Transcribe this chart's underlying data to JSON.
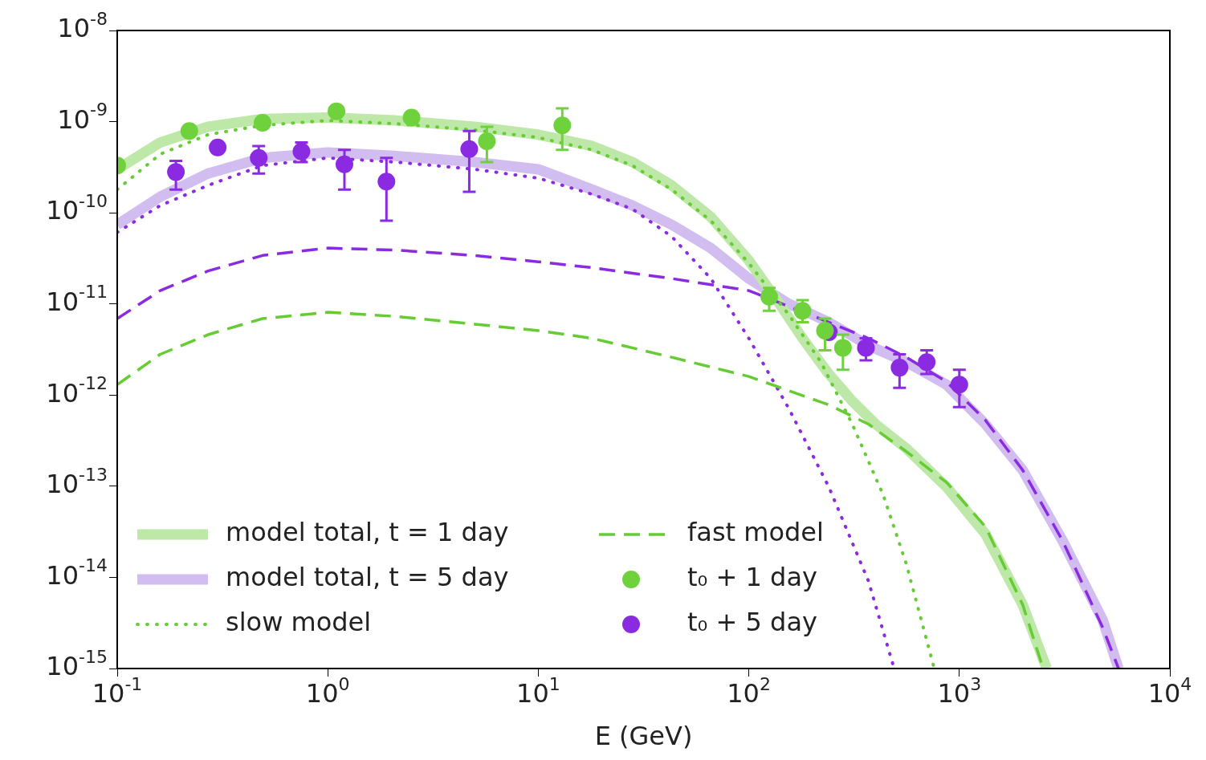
{
  "chart_data": {
    "type": "line",
    "xlabel": "E (GeV)",
    "log": "xy",
    "grid": false,
    "legend": "bottom left",
    "xlim": [
      0.1,
      10000
    ],
    "ylim": [
      1e-15,
      1e-08
    ],
    "xticks": [
      {
        "value": 0.1,
        "label": "10$^{-1}$"
      },
      {
        "value": 1,
        "label": "10$^{0}$"
      },
      {
        "value": 10,
        "label": "10$^{1}$"
      },
      {
        "value": 100,
        "label": "10$^{2}$"
      },
      {
        "value": 1000,
        "label": "10$^{3}$"
      },
      {
        "value": 10000,
        "label": "10$^{4}$"
      }
    ],
    "yticks": [
      {
        "value": 1e-15,
        "label": "10$^{-15}$"
      },
      {
        "value": 1e-14,
        "label": "10$^{-14}$"
      },
      {
        "value": 1e-13,
        "label": "10$^{-13}$"
      },
      {
        "value": 1e-12,
        "label": "10$^{-12}$"
      },
      {
        "value": 1e-11,
        "label": "10$^{-11}$"
      },
      {
        "value": 1e-10,
        "label": "10$^{-10}$"
      },
      {
        "value": 1e-09,
        "label": "10$^{-9}$"
      },
      {
        "value": 1e-08,
        "label": "10$^{-8}$"
      }
    ],
    "series": [
      {
        "name": "model total, t = 1 day",
        "type": "line",
        "line_style": "solid",
        "color": "#bde8a8",
        "x": [
          0.1,
          0.16,
          0.27,
          0.49,
          1,
          2.1,
          5.0,
          10,
          18,
          28,
          43,
          66,
          100,
          140,
          180,
          240,
          310,
          400,
          560,
          870,
          1330,
          2000,
          2600
        ],
        "values": [
          3e-10,
          5.9e-10,
          8.8e-10,
          1.07e-09,
          1.11e-09,
          1.03e-09,
          8.8e-10,
          7.2e-10,
          5.4e-10,
          3.6e-10,
          2e-10,
          9e-11,
          3e-11,
          1e-11,
          4.2e-12,
          1.7e-12,
          8.6e-13,
          4.8e-13,
          2.6e-13,
          9.8e-14,
          3e-14,
          5e-15,
          1e-15
        ]
      },
      {
        "name": "model total, t = 5 day",
        "type": "line",
        "line_style": "solid",
        "color": "#d2bdf0",
        "x": [
          0.1,
          0.16,
          0.27,
          0.49,
          1,
          2.1,
          5.0,
          10,
          18,
          28,
          43,
          66,
          100,
          155,
          240,
          370,
          560,
          870,
          1330,
          2000,
          3100,
          4800,
          5700
        ],
        "values": [
          7.4e-11,
          1.5e-10,
          2.7e-10,
          4e-10,
          4.6e-10,
          4.2e-10,
          3.6e-10,
          3e-10,
          1.8e-10,
          1.2e-10,
          7.4e-11,
          4.1e-11,
          1.9e-11,
          1e-11,
          6.3e-12,
          3.5e-12,
          2.3e-12,
          1.3e-12,
          4.8e-13,
          1.5e-13,
          2.5e-14,
          3.4e-15,
          1e-15
        ]
      },
      {
        "name": "slow model",
        "type": "line",
        "line_style": "dotted",
        "color": "#66cc33",
        "x": [
          0.1,
          0.16,
          0.27,
          0.49,
          1,
          2.1,
          5.0,
          10,
          18,
          28,
          43,
          66,
          100,
          155,
          220,
          310,
          435,
          560,
          760
        ],
        "values": [
          1.8e-10,
          4.4e-10,
          7.2e-10,
          9.1e-10,
          1.03e-09,
          9.5e-10,
          8.1e-10,
          6.7e-10,
          4.9e-10,
          3.3e-10,
          1.8e-10,
          8.2e-11,
          2.8e-11,
          7.6e-12,
          2.3e-12,
          4.8e-13,
          8e-14,
          1.4e-14,
          1e-15
        ]
      },
      {
        "name": "fast model",
        "type": "line",
        "line_style": "dashed",
        "color": "#66cc33",
        "x": [
          0.1,
          0.16,
          0.27,
          0.49,
          1,
          2.1,
          5.0,
          10,
          18,
          43,
          100,
          240,
          370,
          560,
          870,
          1330,
          2000,
          2500
        ],
        "values": [
          1.3e-12,
          2.8e-12,
          4.6e-12,
          6.9e-12,
          8.1e-12,
          7.3e-12,
          6e-12,
          5.1e-12,
          4.2e-12,
          2.6e-12,
          1.6e-12,
          7.8e-13,
          4.8e-13,
          2.4e-13,
          1.1e-13,
          3.6e-14,
          5e-15,
          1e-15
        ]
      },
      {
        "name": "t₀ + 1 day",
        "type": "scatter",
        "marker": "circle",
        "color": "#6fd23c",
        "x": [
          0.1,
          0.22,
          0.49,
          1.1,
          2.5,
          5.7,
          13,
          125,
          180,
          230,
          280
        ],
        "values": [
          3.3e-10,
          7.9e-10,
          9.7e-10,
          1.3e-09,
          1.11e-09,
          6.1e-10,
          9.1e-10,
          1.2e-11,
          8.4e-12,
          5.1e-12,
          3.3e-12
        ],
        "errors": [
          null,
          null,
          null,
          null,
          null,
          [
            3.6e-10,
            8.8e-10
          ],
          [
            4.9e-10,
            1.4e-09
          ],
          [
            8.4e-12,
            1.5e-11
          ],
          [
            6.3e-12,
            1.1e-11
          ],
          [
            3.1e-12,
            6.9e-12
          ],
          [
            1.9e-12,
            4.6e-12
          ]
        ]
      },
      {
        "name": "t₀ + 5 day",
        "type": "scatter",
        "marker": "circle",
        "color": "#8a2be2",
        "x": [
          0.19,
          0.3,
          0.47,
          0.75,
          1.2,
          1.9,
          4.7,
          240,
          360,
          520,
          700,
          1000
        ],
        "values": [
          2.8e-10,
          5.2e-10,
          4e-10,
          4.7e-10,
          3.4e-10,
          2.2e-10,
          5e-10,
          4.9e-12,
          3.3e-12,
          2e-12,
          2.3e-12,
          1.3e-12
        ],
        "errors": [
          [
            1.8e-10,
            3.7e-10
          ],
          null,
          [
            2.7e-10,
            5.4e-10
          ],
          [
            3.6e-10,
            5.9e-10
          ],
          [
            1.8e-10,
            4.9e-10
          ],
          [
            8.2e-11,
            4e-10
          ],
          [
            1.7e-10,
            7.9e-10
          ],
          null,
          [
            2.4e-12,
            4.2e-12
          ],
          [
            1.2e-12,
            2.8e-12
          ],
          [
            1.7e-12,
            3.1e-12
          ],
          [
            7.4e-13,
            1.9e-12
          ]
        ]
      },
      {
        "type": "line",
        "line_style": "dotted",
        "color": "#8a2be2",
        "x": [
          0.1,
          0.16,
          0.27,
          0.49,
          1,
          2.1,
          5.0,
          10,
          18,
          28,
          43,
          66,
          100,
          155,
          240,
          370,
          490
        ],
        "values": [
          6.1e-11,
          1.2e-10,
          2e-10,
          3.3e-10,
          4e-10,
          3.6e-10,
          3e-10,
          2.4e-10,
          1.6e-10,
          1.1e-10,
          5.5e-11,
          1.9e-11,
          4.2e-12,
          7.1e-13,
          9.8e-14,
          9.1e-15,
          1e-15
        ]
      },
      {
        "type": "line",
        "line_style": "dashed",
        "color": "#8a2be2",
        "x": [
          0.1,
          0.16,
          0.27,
          0.49,
          1,
          2.1,
          5.0,
          10,
          18,
          43,
          100,
          240,
          370,
          560,
          870,
          1330,
          2000,
          3100,
          4800,
          5700
        ],
        "values": [
          6.9e-12,
          1.4e-11,
          2.3e-11,
          3.4e-11,
          4.1e-11,
          3.9e-11,
          3.4e-11,
          2.9e-11,
          2.5e-11,
          1.9e-11,
          1.4e-11,
          6.3e-12,
          4.2e-12,
          2.6e-12,
          1.4e-12,
          5.3e-13,
          1.5e-13,
          2.5e-14,
          2.8e-15,
          1e-15
        ]
      }
    ]
  }
}
